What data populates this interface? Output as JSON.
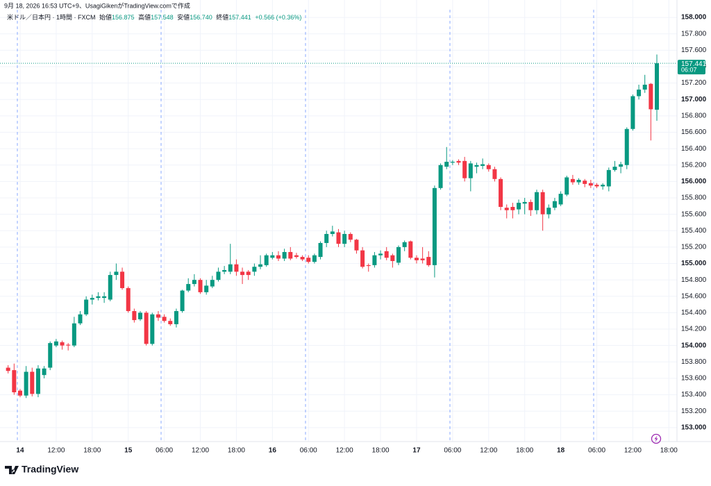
{
  "header": {
    "created": "9月 18, 2026 16:53 UTC+9、UsagiGikenがTradingView.comで作成",
    "symbol": "米ドル／日本円 · 1時間 · FXCM",
    "open_label": "始値",
    "open": "156.875",
    "high_label": "高値",
    "high": "157.548",
    "low_label": "安値",
    "low": "156.740",
    "close_label": "終値",
    "close": "157.441",
    "change": "+0.566 (+0.36%)"
  },
  "footer": {
    "brand": "TradingView"
  },
  "chart_data": {
    "type": "candlestick",
    "up_color": "#089981",
    "down_color": "#f23645",
    "ylim": [
      152.88,
      158.06
    ],
    "xlim": [
      -1.35,
      111.35
    ],
    "grid": true,
    "last_price": 157.441,
    "countdown": "06:07",
    "yticks": [
      {
        "value": 153,
        "label": "153.000"
      },
      {
        "value": 153.2,
        "label": "153.200"
      },
      {
        "value": 153.4,
        "label": "153.400"
      },
      {
        "value": 153.6,
        "label": "153.600"
      },
      {
        "value": 153.8,
        "label": "153.800"
      },
      {
        "value": 154,
        "label": "154.000"
      },
      {
        "value": 154.2,
        "label": "154.200"
      },
      {
        "value": 154.4,
        "label": "154.400"
      },
      {
        "value": 154.6,
        "label": "154.600"
      },
      {
        "value": 154.8,
        "label": "154.800"
      },
      {
        "value": 155,
        "label": "155.000"
      },
      {
        "value": 155.2,
        "label": "155.200"
      },
      {
        "value": 155.4,
        "label": "155.400"
      },
      {
        "value": 155.6,
        "label": "155.600"
      },
      {
        "value": 155.8,
        "label": "155.800"
      },
      {
        "value": 156,
        "label": "156.000"
      },
      {
        "value": 156.2,
        "label": "156.200"
      },
      {
        "value": 156.4,
        "label": "156.400"
      },
      {
        "value": 156.6,
        "label": "156.600"
      },
      {
        "value": 156.8,
        "label": "156.800"
      },
      {
        "value": 157,
        "label": "157.000"
      },
      {
        "value": 157.2,
        "label": "157.200"
      },
      {
        "value": 157.4,
        "label": "157.400"
      },
      {
        "value": 157.6,
        "label": "157.600"
      },
      {
        "value": 157.8,
        "label": "157.800"
      },
      {
        "value": 158,
        "label": "158.000"
      }
    ],
    "xticks": [
      {
        "value": 2,
        "label": "14"
      },
      {
        "value": 8,
        "label": "12:00"
      },
      {
        "value": 14,
        "label": "18:00"
      },
      {
        "value": 20,
        "label": "15"
      },
      {
        "value": 26,
        "label": "06:00"
      },
      {
        "value": 32,
        "label": "12:00"
      },
      {
        "value": 38,
        "label": "18:00"
      },
      {
        "value": 44,
        "label": "16"
      },
      {
        "value": 50,
        "label": "06:00"
      },
      {
        "value": 56,
        "label": "12:00"
      },
      {
        "value": 62,
        "label": "18:00"
      },
      {
        "value": 68,
        "label": "17"
      },
      {
        "value": 74,
        "label": "06:00"
      },
      {
        "value": 80,
        "label": "12:00"
      },
      {
        "value": 86,
        "label": "18:00"
      },
      {
        "value": 92,
        "label": "18"
      },
      {
        "value": 98,
        "label": "06:00"
      },
      {
        "value": 104,
        "label": "12:00"
      },
      {
        "value": 110,
        "label": "18:00"
      }
    ],
    "candles": [
      {
        "o": 153.73,
        "h": 153.76,
        "l": 153.66,
        "c": 153.69
      },
      {
        "o": 153.7,
        "h": 153.78,
        "l": 153.4,
        "c": 153.43
      },
      {
        "o": 153.45,
        "h": 153.47,
        "l": 153.37,
        "c": 153.39
      },
      {
        "o": 153.39,
        "h": 153.75,
        "l": 153.36,
        "c": 153.68
      },
      {
        "o": 153.68,
        "h": 153.73,
        "l": 153.38,
        "c": 153.41
      },
      {
        "o": 153.41,
        "h": 153.76,
        "l": 153.37,
        "c": 153.72
      },
      {
        "o": 153.64,
        "h": 153.75,
        "l": 153.6,
        "c": 153.72
      },
      {
        "o": 153.73,
        "h": 154.05,
        "l": 153.7,
        "c": 154.03
      },
      {
        "o": 154.0,
        "h": 154.08,
        "l": 153.98,
        "c": 154.05
      },
      {
        "o": 154.04,
        "h": 154.06,
        "l": 153.95,
        "c": 154.0
      },
      {
        "o": 154.01,
        "h": 154.03,
        "l": 153.94,
        "c": 154.0
      },
      {
        "o": 154.0,
        "h": 154.35,
        "l": 153.98,
        "c": 154.27
      },
      {
        "o": 154.27,
        "h": 154.42,
        "l": 154.25,
        "c": 154.38
      },
      {
        "o": 154.38,
        "h": 154.6,
        "l": 154.36,
        "c": 154.56
      },
      {
        "o": 154.56,
        "h": 154.62,
        "l": 154.5,
        "c": 154.58
      },
      {
        "o": 154.58,
        "h": 154.65,
        "l": 154.55,
        "c": 154.6
      },
      {
        "o": 154.58,
        "h": 154.65,
        "l": 154.52,
        "c": 154.6
      },
      {
        "o": 154.56,
        "h": 154.9,
        "l": 154.54,
        "c": 154.86
      },
      {
        "o": 154.86,
        "h": 155.0,
        "l": 154.8,
        "c": 154.9
      },
      {
        "o": 154.9,
        "h": 154.95,
        "l": 154.68,
        "c": 154.7
      },
      {
        "o": 154.7,
        "h": 154.72,
        "l": 154.4,
        "c": 154.42
      },
      {
        "o": 154.42,
        "h": 154.45,
        "l": 154.28,
        "c": 154.31
      },
      {
        "o": 154.32,
        "h": 154.42,
        "l": 154.3,
        "c": 154.4
      },
      {
        "o": 154.4,
        "h": 154.42,
        "l": 154.0,
        "c": 154.02
      },
      {
        "o": 154.02,
        "h": 154.4,
        "l": 154.0,
        "c": 154.38
      },
      {
        "o": 154.38,
        "h": 154.42,
        "l": 154.3,
        "c": 154.34
      },
      {
        "o": 154.35,
        "h": 154.38,
        "l": 154.28,
        "c": 154.3
      },
      {
        "o": 154.3,
        "h": 154.33,
        "l": 154.24,
        "c": 154.26
      },
      {
        "o": 154.26,
        "h": 154.45,
        "l": 154.22,
        "c": 154.42
      },
      {
        "o": 154.42,
        "h": 154.68,
        "l": 154.4,
        "c": 154.67
      },
      {
        "o": 154.67,
        "h": 154.82,
        "l": 154.65,
        "c": 154.75
      },
      {
        "o": 154.75,
        "h": 154.87,
        "l": 154.72,
        "c": 154.8
      },
      {
        "o": 154.8,
        "h": 154.82,
        "l": 154.63,
        "c": 154.65
      },
      {
        "o": 154.65,
        "h": 154.8,
        "l": 154.62,
        "c": 154.73
      },
      {
        "o": 154.72,
        "h": 154.85,
        "l": 154.7,
        "c": 154.8
      },
      {
        "o": 154.8,
        "h": 154.95,
        "l": 154.78,
        "c": 154.9
      },
      {
        "o": 154.9,
        "h": 154.97,
        "l": 154.87,
        "c": 154.92
      },
      {
        "o": 154.9,
        "h": 155.24,
        "l": 154.87,
        "c": 154.99
      },
      {
        "o": 154.99,
        "h": 155.05,
        "l": 154.85,
        "c": 154.9
      },
      {
        "o": 154.9,
        "h": 154.95,
        "l": 154.75,
        "c": 154.86
      },
      {
        "o": 154.9,
        "h": 154.92,
        "l": 154.8,
        "c": 154.86
      },
      {
        "o": 154.9,
        "h": 155.0,
        "l": 154.85,
        "c": 154.96
      },
      {
        "o": 154.96,
        "h": 155.1,
        "l": 154.93,
        "c": 154.99
      },
      {
        "o": 154.98,
        "h": 155.12,
        "l": 154.96,
        "c": 155.1
      },
      {
        "o": 155.07,
        "h": 155.14,
        "l": 155.05,
        "c": 155.1
      },
      {
        "o": 155.1,
        "h": 155.15,
        "l": 155.03,
        "c": 155.06
      },
      {
        "o": 155.06,
        "h": 155.18,
        "l": 155.03,
        "c": 155.14
      },
      {
        "o": 155.14,
        "h": 155.2,
        "l": 155.04,
        "c": 155.06
      },
      {
        "o": 155.1,
        "h": 155.13,
        "l": 155.06,
        "c": 155.08
      },
      {
        "o": 155.08,
        "h": 155.1,
        "l": 155.03,
        "c": 155.05
      },
      {
        "o": 155.07,
        "h": 155.1,
        "l": 155.0,
        "c": 155.02
      },
      {
        "o": 155.02,
        "h": 155.12,
        "l": 155.0,
        "c": 155.1
      },
      {
        "o": 155.08,
        "h": 155.27,
        "l": 155.05,
        "c": 155.25
      },
      {
        "o": 155.25,
        "h": 155.4,
        "l": 155.2,
        "c": 155.36
      },
      {
        "o": 155.36,
        "h": 155.46,
        "l": 155.33,
        "c": 155.39
      },
      {
        "o": 155.38,
        "h": 155.42,
        "l": 155.2,
        "c": 155.24
      },
      {
        "o": 155.24,
        "h": 155.4,
        "l": 155.2,
        "c": 155.36
      },
      {
        "o": 155.36,
        "h": 155.38,
        "l": 155.26,
        "c": 155.29
      },
      {
        "o": 155.29,
        "h": 155.3,
        "l": 155.12,
        "c": 155.16
      },
      {
        "o": 155.16,
        "h": 155.2,
        "l": 154.94,
        "c": 154.96
      },
      {
        "o": 154.98,
        "h": 155.0,
        "l": 154.9,
        "c": 154.97
      },
      {
        "o": 154.98,
        "h": 155.14,
        "l": 154.95,
        "c": 155.1
      },
      {
        "o": 155.1,
        "h": 155.16,
        "l": 155.05,
        "c": 155.12
      },
      {
        "o": 155.15,
        "h": 155.2,
        "l": 155.04,
        "c": 155.07
      },
      {
        "o": 155.1,
        "h": 155.12,
        "l": 154.95,
        "c": 155.03
      },
      {
        "o": 155.01,
        "h": 155.22,
        "l": 154.98,
        "c": 155.2
      },
      {
        "o": 155.2,
        "h": 155.28,
        "l": 155.15,
        "c": 155.26
      },
      {
        "o": 155.27,
        "h": 155.28,
        "l": 155.05,
        "c": 155.07
      },
      {
        "o": 155.07,
        "h": 155.1,
        "l": 155.0,
        "c": 155.04
      },
      {
        "o": 155.06,
        "h": 155.2,
        "l": 155.0,
        "c": 155.04
      },
      {
        "o": 155.08,
        "h": 155.15,
        "l": 154.96,
        "c": 154.98
      },
      {
        "o": 154.98,
        "h": 155.95,
        "l": 154.83,
        "c": 155.92
      },
      {
        "o": 155.92,
        "h": 156.22,
        "l": 155.9,
        "c": 156.2
      },
      {
        "o": 156.18,
        "h": 156.42,
        "l": 156.15,
        "c": 156.24
      },
      {
        "o": 156.23,
        "h": 156.26,
        "l": 156.2,
        "c": 156.24
      },
      {
        "o": 156.25,
        "h": 156.27,
        "l": 156.2,
        "c": 156.23
      },
      {
        "o": 156.25,
        "h": 156.3,
        "l": 156.0,
        "c": 156.04
      },
      {
        "o": 156.04,
        "h": 156.25,
        "l": 155.88,
        "c": 156.22
      },
      {
        "o": 156.18,
        "h": 156.23,
        "l": 156.1,
        "c": 156.2
      },
      {
        "o": 156.19,
        "h": 156.28,
        "l": 156.15,
        "c": 156.21
      },
      {
        "o": 156.2,
        "h": 156.22,
        "l": 156.12,
        "c": 156.15
      },
      {
        "o": 156.15,
        "h": 156.18,
        "l": 156.0,
        "c": 156.03
      },
      {
        "o": 156.03,
        "h": 156.05,
        "l": 155.65,
        "c": 155.69
      },
      {
        "o": 155.68,
        "h": 155.72,
        "l": 155.55,
        "c": 155.65
      },
      {
        "o": 155.69,
        "h": 155.74,
        "l": 155.55,
        "c": 155.65
      },
      {
        "o": 155.66,
        "h": 155.78,
        "l": 155.6,
        "c": 155.74
      },
      {
        "o": 155.73,
        "h": 155.8,
        "l": 155.6,
        "c": 155.75
      },
      {
        "o": 155.75,
        "h": 155.78,
        "l": 155.58,
        "c": 155.65
      },
      {
        "o": 155.65,
        "h": 155.9,
        "l": 155.6,
        "c": 155.87
      },
      {
        "o": 155.87,
        "h": 155.9,
        "l": 155.4,
        "c": 155.6
      },
      {
        "o": 155.6,
        "h": 155.72,
        "l": 155.55,
        "c": 155.68
      },
      {
        "o": 155.68,
        "h": 155.8,
        "l": 155.65,
        "c": 155.76
      },
      {
        "o": 155.72,
        "h": 155.88,
        "l": 155.7,
        "c": 155.85
      },
      {
        "o": 155.84,
        "h": 156.07,
        "l": 155.82,
        "c": 156.05
      },
      {
        "o": 156.03,
        "h": 156.08,
        "l": 155.96,
        "c": 155.99
      },
      {
        "o": 155.99,
        "h": 156.04,
        "l": 155.96,
        "c": 156.02
      },
      {
        "o": 156.01,
        "h": 156.03,
        "l": 155.93,
        "c": 155.97
      },
      {
        "o": 155.98,
        "h": 156.02,
        "l": 155.92,
        "c": 155.95
      },
      {
        "o": 155.96,
        "h": 155.98,
        "l": 155.92,
        "c": 155.94
      },
      {
        "o": 155.94,
        "h": 155.98,
        "l": 155.9,
        "c": 155.96
      },
      {
        "o": 155.94,
        "h": 156.17,
        "l": 155.88,
        "c": 156.14
      },
      {
        "o": 156.14,
        "h": 156.25,
        "l": 156.12,
        "c": 156.18
      },
      {
        "o": 156.18,
        "h": 156.24,
        "l": 156.1,
        "c": 156.21
      },
      {
        "o": 156.2,
        "h": 156.66,
        "l": 156.15,
        "c": 156.64
      },
      {
        "o": 156.64,
        "h": 157.06,
        "l": 156.62,
        "c": 157.04
      },
      {
        "o": 157.04,
        "h": 157.18,
        "l": 157.0,
        "c": 157.12
      },
      {
        "o": 157.12,
        "h": 157.3,
        "l": 157.08,
        "c": 157.18
      },
      {
        "o": 157.19,
        "h": 157.2,
        "l": 156.5,
        "c": 156.88
      },
      {
        "o": 156.875,
        "h": 157.548,
        "l": 156.74,
        "c": 157.441
      }
    ]
  }
}
